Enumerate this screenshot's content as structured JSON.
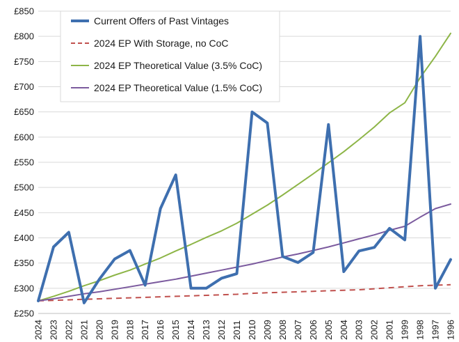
{
  "chart_data": {
    "type": "line",
    "categories": [
      "2024",
      "2023",
      "2022",
      "2021",
      "2020",
      "2019",
      "2018",
      "2017",
      "2016",
      "2015",
      "2014",
      "2013",
      "2012",
      "2011",
      "2010",
      "2009",
      "2008",
      "2007",
      "2006",
      "2005",
      "2004",
      "2003",
      "2002",
      "2001",
      "1999",
      "1998",
      "1997",
      "1996"
    ],
    "ylim": [
      250,
      850
    ],
    "yticks": [
      "£250",
      "£300",
      "£350",
      "£400",
      "£450",
      "£500",
      "£550",
      "£600",
      "£650",
      "£700",
      "£750",
      "£800",
      "£850"
    ],
    "grid": true,
    "legend_position": "top-left",
    "series": [
      {
        "name": "Current Offers of Past Vintages",
        "color": "#3E6FAF",
        "style": "solid-thick",
        "values": [
          275,
          382,
          411,
          271,
          318,
          358,
          375,
          306,
          458,
          525,
          300,
          300,
          320,
          329,
          650,
          628,
          363,
          351,
          371,
          625,
          333,
          374,
          381,
          419,
          396,
          800,
          300,
          357
        ]
      },
      {
        "name": "2024 EP With Storage, no CoC",
        "color": "#C0504D",
        "style": "dashed",
        "values": [
          275,
          276,
          277,
          278,
          279,
          280,
          281,
          282,
          283,
          284,
          285,
          286,
          287,
          288,
          290,
          291,
          292,
          293,
          294,
          295,
          296,
          297,
          299,
          301,
          303,
          305,
          306,
          307
        ]
      },
      {
        "name": "2024 EP Theoretical Value (3.5% CoC)",
        "color": "#8DB547",
        "style": "solid",
        "values": [
          275,
          284,
          294,
          305,
          315,
          326,
          336,
          348,
          360,
          374,
          387,
          401,
          414,
          429,
          447,
          465,
          485,
          506,
          527,
          549,
          571,
          595,
          620,
          648,
          668,
          718,
          760,
          806
        ]
      },
      {
        "name": "2024 EP Theoretical Value (1.5% CoC)",
        "color": "#7B5A9E",
        "style": "solid",
        "values": [
          275,
          279,
          284,
          289,
          293,
          298,
          303,
          308,
          313,
          318,
          324,
          330,
          336,
          342,
          348,
          355,
          362,
          368,
          375,
          382,
          390,
          398,
          406,
          415,
          423,
          441,
          458,
          467
        ]
      }
    ]
  }
}
